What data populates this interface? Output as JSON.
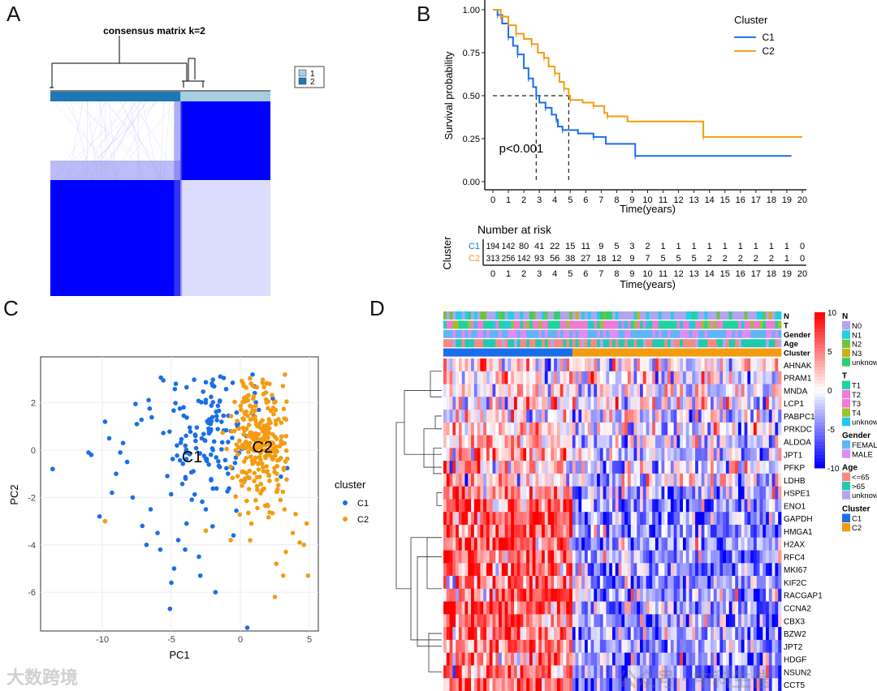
{
  "panels": {
    "a": "A",
    "b": "B",
    "c": "C",
    "d": "D"
  },
  "watermarks": {
    "left": "大数跨境",
    "right": "公众号 · 中科生信"
  },
  "chart_data": [
    {
      "id": "A",
      "type": "heatmap",
      "title": "consensus matrix k=2",
      "legend": [
        {
          "label": "1",
          "color": "#a6cee3"
        },
        {
          "label": "2",
          "color": "#1f78b4"
        }
      ],
      "cluster_fraction_2": 0.61,
      "matrix_color": "#0000ff"
    },
    {
      "id": "B",
      "type": "line",
      "title": "",
      "xlabel": "Time(years)",
      "ylabel": "Survival probability",
      "xlim": [
        0,
        20
      ],
      "ylim": [
        0,
        1
      ],
      "xticks": [
        "0",
        "1",
        "2",
        "3",
        "4",
        "5",
        "6",
        "7",
        "8",
        "9",
        "10",
        "11",
        "12",
        "13",
        "14",
        "15",
        "16",
        "17",
        "18",
        "19",
        "20"
      ],
      "yticks": [
        "0.00",
        "0.25",
        "0.50",
        "0.75",
        "1.00"
      ],
      "legend_title": "Cluster",
      "legend_position": "top-right",
      "annotation": "p<0.001",
      "median_survival": {
        "C1": 2.8,
        "C2": 4.9
      },
      "series": [
        {
          "name": "C1",
          "color": "#1a6ee8",
          "points": [
            [
              0,
              1
            ],
            [
              0.3,
              0.97
            ],
            [
              0.6,
              0.92
            ],
            [
              1,
              0.84
            ],
            [
              1.3,
              0.79
            ],
            [
              1.6,
              0.74
            ],
            [
              2,
              0.66
            ],
            [
              2.3,
              0.6
            ],
            [
              2.6,
              0.55
            ],
            [
              2.8,
              0.5
            ],
            [
              3,
              0.46
            ],
            [
              3.4,
              0.43
            ],
            [
              3.8,
              0.39
            ],
            [
              4.1,
              0.36
            ],
            [
              4.2,
              0.32
            ],
            [
              4.5,
              0.3
            ],
            [
              5.5,
              0.28
            ],
            [
              6.5,
              0.26
            ],
            [
              7.3,
              0.22
            ],
            [
              9.2,
              0.15
            ],
            [
              19.3,
              0.15
            ]
          ]
        },
        {
          "name": "C2",
          "color": "#f39c12",
          "points": [
            [
              0,
              1
            ],
            [
              0.5,
              0.96
            ],
            [
              1,
              0.91
            ],
            [
              1.5,
              0.86
            ],
            [
              2,
              0.83
            ],
            [
              2.5,
              0.8
            ],
            [
              2.9,
              0.75
            ],
            [
              3.3,
              0.72
            ],
            [
              3.6,
              0.67
            ],
            [
              4,
              0.63
            ],
            [
              4.3,
              0.58
            ],
            [
              4.6,
              0.54
            ],
            [
              4.9,
              0.5
            ],
            [
              5,
              0.475
            ],
            [
              5.8,
              0.46
            ],
            [
              6.5,
              0.44
            ],
            [
              7.2,
              0.4
            ],
            [
              7.4,
              0.38
            ],
            [
              8.7,
              0.35
            ],
            [
              13.6,
              0.26
            ],
            [
              20,
              0.26
            ]
          ]
        }
      ],
      "risk_table": {
        "title": "Number at risk",
        "ylabel": "Cluster",
        "xlabel": "Time(years)",
        "rows": [
          {
            "name": "C1",
            "color": "#1a6ee8",
            "values": [
              "194",
              "142",
              "80",
              "41",
              "22",
              "15",
              "11",
              "9",
              "5",
              "3",
              "2",
              "1",
              "1",
              "1",
              "1",
              "1",
              "1",
              "1",
              "1",
              "1",
              "0"
            ]
          },
          {
            "name": "C2",
            "color": "#f39c12",
            "values": [
              "313",
              "256",
              "142",
              "93",
              "56",
              "38",
              "27",
              "18",
              "12",
              "9",
              "7",
              "5",
              "5",
              "5",
              "2",
              "2",
              "2",
              "2",
              "2",
              "1",
              "0"
            ]
          }
        ]
      }
    },
    {
      "id": "C",
      "type": "scatter",
      "xlabel": "PC1",
      "ylabel": "PC2",
      "xlim": [
        -14,
        5.6
      ],
      "ylim": [
        -7.9,
        3.5
      ],
      "xticks": [
        "-10",
        "-5",
        "0",
        "5"
      ],
      "yticks": [
        "2",
        "0",
        "-2",
        "-4",
        "-6"
      ],
      "legend_title": "cluster",
      "legend_position": "right",
      "cluster_labels": [
        {
          "text": "C1",
          "x": -3.5,
          "y": -0.3
        },
        {
          "text": "C2",
          "x": 1.6,
          "y": 0.1
        }
      ],
      "series": [
        {
          "name": "C1",
          "color": "#1a6ee8",
          "core": {
            "cx": -2.2,
            "cy": 0.6,
            "sx": 2.0,
            "sy": 1.3,
            "n": 150
          },
          "points": [
            [
              -13.6,
              -0.8
            ],
            [
              -11,
              -0.1
            ],
            [
              -10.8,
              -0.2
            ],
            [
              -10.2,
              -2.8
            ],
            [
              -9.5,
              0.5
            ],
            [
              -9.8,
              1.2
            ],
            [
              -9,
              -1
            ],
            [
              -8.7,
              -0.1
            ],
            [
              -8.2,
              -0.5
            ],
            [
              -7.5,
              1.1
            ],
            [
              -7.1,
              -3.2
            ],
            [
              -6.8,
              -4
            ],
            [
              -6.5,
              -2.5
            ],
            [
              -6,
              -3.5
            ],
            [
              -5.8,
              -4.2
            ],
            [
              -5.1,
              -6.7
            ],
            [
              -5,
              -5.6
            ],
            [
              -4.8,
              -5
            ],
            [
              -4.5,
              -3.8
            ],
            [
              -4,
              -4.2
            ],
            [
              -3.9,
              -3.1
            ],
            [
              -2.9,
              -5.3
            ],
            [
              -1.8,
              -6
            ],
            [
              -0.5,
              -3.6
            ],
            [
              0.5,
              -7.5
            ],
            [
              -2.5,
              -2.5
            ],
            [
              -3,
              -4.5
            ],
            [
              -7.8,
              -2
            ],
            [
              -8.5,
              0.3
            ],
            [
              -9.3,
              -1.8
            ]
          ]
        },
        {
          "name": "C2",
          "color": "#f39c12",
          "core": {
            "cx": 1.4,
            "cy": 0.4,
            "sx": 1.1,
            "sy": 1.2,
            "n": 260
          },
          "points": [
            [
              -9.8,
              -3
            ],
            [
              -2.5,
              -3.4
            ],
            [
              3.2,
              -2.5
            ],
            [
              3.8,
              -3.5
            ],
            [
              4.3,
              -3.9
            ],
            [
              4.8,
              -3.1
            ],
            [
              3.3,
              -4.3
            ],
            [
              3.1,
              -5.3
            ],
            [
              2.6,
              -4.8
            ],
            [
              4.9,
              -5.3
            ],
            [
              2.5,
              -6.2
            ],
            [
              4.6,
              -4
            ],
            [
              4,
              -2.7
            ],
            [
              0.8,
              -3.1
            ],
            [
              -0.7,
              -3.8
            ]
          ]
        }
      ]
    },
    {
      "id": "D",
      "type": "heatmap",
      "annotation_rows": [
        "N",
        "T",
        "Gender",
        "Age",
        "Cluster"
      ],
      "genes": [
        "AHNAK",
        "PRAM1",
        "MNDA",
        "LCP1",
        "PABPC1",
        "PRKDC",
        "ALDOA",
        "JPT1",
        "PFKP",
        "LDHB",
        "HSPE1",
        "ENO1",
        "GAPDH",
        "HMGA1",
        "H2AX",
        "RFC4",
        "MKI67",
        "KIF2C",
        "RACGAP1",
        "CCNA2",
        "CBX3",
        "BZW2",
        "JPT2",
        "HDGF",
        "NSUN2",
        "CCT5"
      ],
      "cluster_split": {
        "C1": 0.385,
        "C2": 0.615
      },
      "mean_c1": [
        0,
        0.3,
        0.3,
        0.3,
        0.6,
        0.6,
        1.2,
        1.2,
        0.8,
        0.6,
        1.8,
        2.5,
        2.8,
        2.5,
        2.5,
        2.2,
        2.2,
        2.2,
        2.2,
        2.2,
        2,
        2,
        2,
        2,
        2.2,
        2.2
      ],
      "mean_c2": [
        0,
        -0.3,
        -0.3,
        -0.3,
        -0.4,
        -0.4,
        -0.8,
        -0.8,
        -0.5,
        -0.4,
        -1.2,
        -1.8,
        -2,
        -1.8,
        -1.8,
        -1.6,
        -1.6,
        -1.6,
        -1.6,
        -1.6,
        -1.4,
        -1.4,
        -1.4,
        -1.4,
        -1.6,
        -1.6
      ],
      "colorbar": {
        "ticks": [
          "10",
          "5",
          "0",
          "-5",
          "-10"
        ],
        "range": [
          -10,
          10
        ]
      },
      "legends": [
        {
          "title": "N",
          "items": [
            {
              "label": "N0",
              "color": "#b3a5f0"
            },
            {
              "label": "N1",
              "color": "#1fd0e6"
            },
            {
              "label": "N2",
              "color": "#6cc53a"
            },
            {
              "label": "N3",
              "color": "#c9b319"
            },
            {
              "label": "unknow",
              "color": "#2fcf72"
            }
          ]
        },
        {
          "title": "T",
          "items": [
            {
              "label": "T1",
              "color": "#1fd3a0"
            },
            {
              "label": "T2",
              "color": "#f07ad6"
            },
            {
              "label": "T3",
              "color": "#f07ad6"
            },
            {
              "label": "T4",
              "color": "#9cc22a"
            },
            {
              "label": "unknow",
              "color": "#22c6ef"
            }
          ]
        },
        {
          "title": "Gender",
          "items": [
            {
              "label": "FEMALE",
              "color": "#5fb6f5"
            },
            {
              "label": "MALE",
              "color": "#e28af5"
            }
          ]
        },
        {
          "title": "Age",
          "items": [
            {
              "label": "<=65",
              "color": "#f78a80"
            },
            {
              "label": ">65",
              "color": "#22c9b0"
            },
            {
              "label": "unknow",
              "color": "#b3a5f0"
            }
          ]
        },
        {
          "title": "Cluster",
          "items": [
            {
              "label": "C1",
              "color": "#1a6ee8"
            },
            {
              "label": "C2",
              "color": "#f39c12"
            }
          ]
        }
      ]
    }
  ]
}
